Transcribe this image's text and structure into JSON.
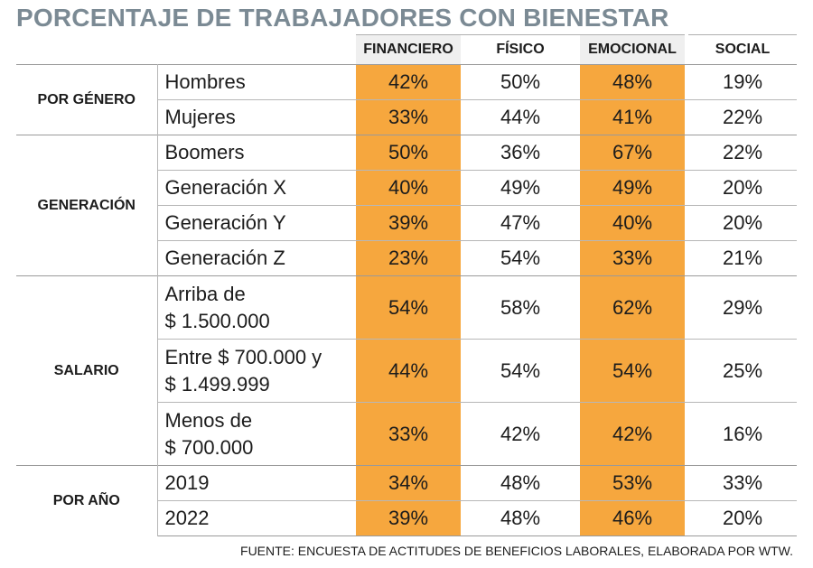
{
  "title": "PORCENTAJE DE TRABAJADORES CON BIENESTAR",
  "source": "FUENTE: ENCUESTA DE ACTITUDES DE BENEFICIOS LABORALES, ELABORADA POR WTW.",
  "colors": {
    "highlight": "#f6a73e",
    "header_highlight": "#efefef",
    "title": "#7b8a94"
  },
  "chart_data": {
    "type": "table",
    "title": "PORCENTAJE DE TRABAJADORES CON BIENESTAR",
    "columns": [
      "FINANCIERO",
      "FÍSICO",
      "EMOCIONAL",
      "SOCIAL"
    ],
    "highlighted_columns": [
      "FINANCIERO",
      "EMOCIONAL"
    ],
    "groups": [
      {
        "name": "POR GÉNERO",
        "rows": [
          {
            "label": [
              "Hombres"
            ],
            "values": [
              "42%",
              "50%",
              "48%",
              "19%"
            ]
          },
          {
            "label": [
              "Mujeres"
            ],
            "values": [
              "33%",
              "44%",
              "41%",
              "22%"
            ]
          }
        ]
      },
      {
        "name": "GENERACIÓN",
        "rows": [
          {
            "label": [
              "Boomers"
            ],
            "values": [
              "50%",
              "36%",
              "67%",
              "22%"
            ]
          },
          {
            "label": [
              "Generación X"
            ],
            "values": [
              "40%",
              "49%",
              "49%",
              "20%"
            ]
          },
          {
            "label": [
              "Generación Y"
            ],
            "values": [
              "39%",
              "47%",
              "40%",
              "20%"
            ]
          },
          {
            "label": [
              "Generación Z"
            ],
            "values": [
              "23%",
              "54%",
              "33%",
              "21%"
            ]
          }
        ]
      },
      {
        "name": "SALARIO",
        "rows": [
          {
            "label": [
              "Arriba de",
              "$ 1.500.000"
            ],
            "values": [
              "54%",
              "58%",
              "62%",
              "29%"
            ]
          },
          {
            "label": [
              "Entre $ 700.000 y",
              "$ 1.499.999"
            ],
            "values": [
              "44%",
              "54%",
              "54%",
              "25%"
            ]
          },
          {
            "label": [
              "Menos de",
              "$ 700.000"
            ],
            "values": [
              "33%",
              "42%",
              "42%",
              "16%"
            ]
          }
        ]
      },
      {
        "name": "POR AÑO",
        "rows": [
          {
            "label": [
              "2019"
            ],
            "values": [
              "34%",
              "48%",
              "53%",
              "33%"
            ]
          },
          {
            "label": [
              "2022"
            ],
            "values": [
              "39%",
              "48%",
              "46%",
              "20%"
            ]
          }
        ]
      }
    ]
  }
}
